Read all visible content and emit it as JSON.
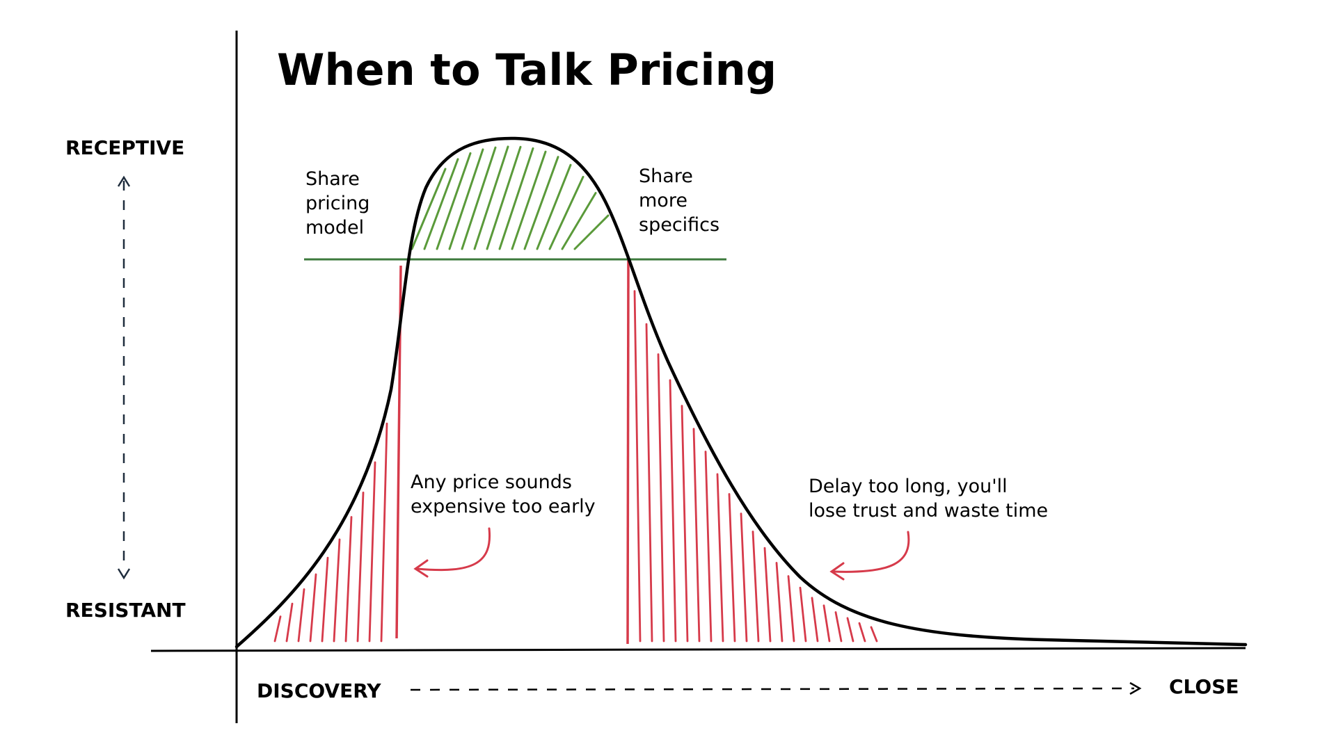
{
  "title": "When to Talk Pricing",
  "y_axis": {
    "top_label": "RECEPTIVE",
    "bottom_label": "RESISTANT"
  },
  "x_axis": {
    "left_label": "DISCOVERY",
    "right_label": "CLOSE"
  },
  "annotations": {
    "share_pricing_model": [
      "Share",
      "pricing",
      "model"
    ],
    "share_more_specifics": [
      "Share",
      "more",
      "specifics"
    ],
    "too_early": [
      "Any price sounds",
      "expensive too early"
    ],
    "too_late": [
      "Delay too long, you'll",
      "lose trust and waste time"
    ]
  },
  "colors": {
    "curve": "#000000",
    "receptive_zone": "#5a9a3a",
    "threshold_line": "#3d7a3d",
    "resistant_zone": "#d63a4a",
    "y_arrow": "#1f2d3d"
  }
}
